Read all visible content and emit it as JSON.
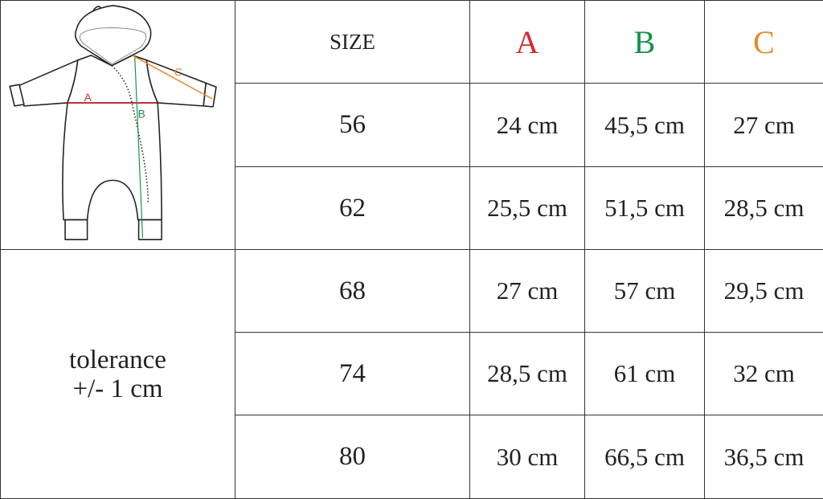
{
  "header": {
    "size_label": "SIZE",
    "columns": [
      {
        "label": "A",
        "color": "#d42a32"
      },
      {
        "label": "B",
        "color": "#16924a"
      },
      {
        "label": "C",
        "color": "#e8862a"
      }
    ]
  },
  "illustration": {
    "labels": {
      "a": "A",
      "b": "B",
      "c": "C"
    }
  },
  "rows": [
    {
      "size": "56",
      "a": "24 cm",
      "b": "45,5 cm",
      "c": "27 cm"
    },
    {
      "size": "62",
      "a": "25,5 cm",
      "b": "51,5 cm",
      "c": "28,5 cm"
    },
    {
      "size": "68",
      "a": "27 cm",
      "b": "57 cm",
      "c": "29,5 cm"
    },
    {
      "size": "74",
      "a": "28,5 cm",
      "b": "61 cm",
      "c": "32 cm"
    },
    {
      "size": "80",
      "a": "30 cm",
      "b": "66,5 cm",
      "c": "36,5 cm"
    }
  ],
  "tolerance": {
    "line1": "tolerance",
    "line2": "+/- 1 cm"
  }
}
